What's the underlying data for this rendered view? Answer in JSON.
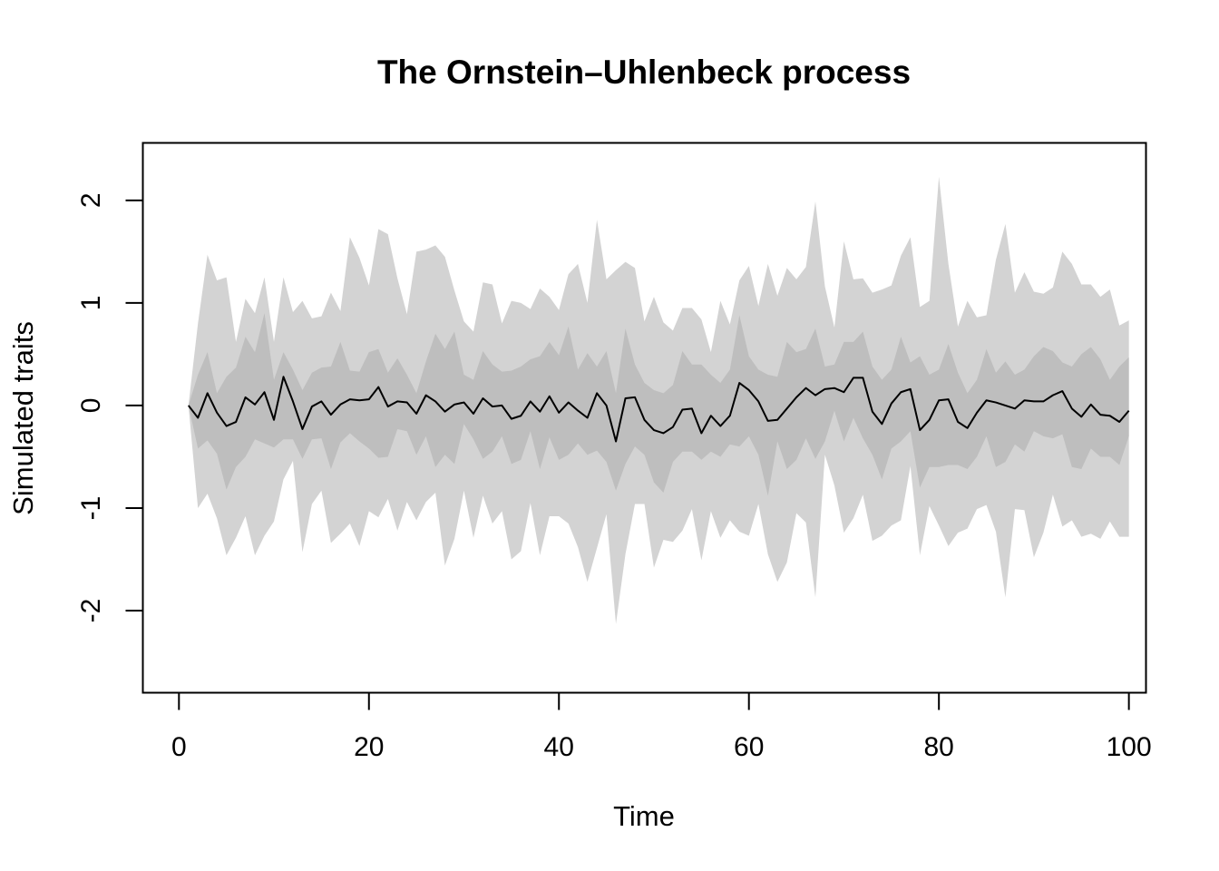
{
  "chart_data": {
    "type": "area",
    "title": "The Ornstein–Uhlenbeck process",
    "xlabel": "Time",
    "ylabel": "Simulated traits",
    "xlim": [
      -3.8,
      101.8
    ],
    "ylim": [
      -2.8,
      2.56
    ],
    "xticks": [
      0,
      20,
      40,
      60,
      80,
      100
    ],
    "yticks": [
      -2,
      -1,
      0,
      1,
      2
    ],
    "grid": false,
    "legend": "none",
    "colors": {
      "outer_band": "#d3d3d3",
      "inner_band": "#bebebe",
      "line": "#000000",
      "frame": "#000000"
    },
    "x": [
      1,
      2,
      3,
      4,
      5,
      6,
      7,
      8,
      9,
      10,
      11,
      12,
      13,
      14,
      15,
      16,
      17,
      18,
      19,
      20,
      21,
      22,
      23,
      24,
      25,
      26,
      27,
      28,
      29,
      30,
      31,
      32,
      33,
      34,
      35,
      36,
      37,
      38,
      39,
      40,
      41,
      42,
      43,
      44,
      45,
      46,
      47,
      48,
      49,
      50,
      51,
      52,
      53,
      54,
      55,
      56,
      57,
      58,
      59,
      60,
      61,
      62,
      63,
      64,
      65,
      66,
      67,
      68,
      69,
      70,
      71,
      72,
      73,
      74,
      75,
      76,
      77,
      78,
      79,
      80,
      81,
      82,
      83,
      84,
      85,
      86,
      87,
      88,
      89,
      90,
      91,
      92,
      93,
      94,
      95,
      96,
      97,
      98,
      99,
      100
    ],
    "series": [
      {
        "role": "outer band upper",
        "values": [
          0.0,
          0.8,
          1.47,
          1.22,
          1.25,
          0.62,
          1.04,
          0.9,
          1.25,
          0.62,
          1.25,
          0.91,
          1.02,
          0.85,
          0.87,
          1.1,
          0.92,
          1.64,
          1.44,
          1.17,
          1.72,
          1.67,
          1.24,
          0.89,
          1.5,
          1.52,
          1.56,
          1.45,
          1.12,
          0.82,
          0.72,
          1.2,
          1.18,
          0.8,
          1.02,
          1.0,
          0.94,
          1.14,
          1.06,
          0.93,
          1.28,
          1.38,
          1.0,
          1.81,
          1.23,
          1.32,
          1.4,
          1.34,
          0.82,
          1.06,
          0.81,
          0.73,
          0.95,
          0.95,
          0.84,
          0.52,
          1.02,
          0.79,
          1.22,
          1.36,
          0.97,
          1.38,
          1.07,
          1.34,
          1.23,
          1.35,
          1.99,
          1.16,
          0.76,
          1.6,
          1.23,
          1.24,
          1.1,
          1.13,
          1.17,
          1.46,
          1.64,
          0.96,
          1.02,
          2.23,
          1.38,
          0.77,
          1.02,
          0.86,
          0.88,
          1.42,
          1.77,
          1.1,
          1.3,
          1.11,
          1.09,
          1.15,
          1.5,
          1.38,
          1.18,
          1.18,
          1.06,
          1.13,
          0.78,
          0.83
        ]
      },
      {
        "role": "outer band lower",
        "values": [
          0.0,
          -1.0,
          -0.86,
          -1.1,
          -1.46,
          -1.29,
          -1.08,
          -1.46,
          -1.27,
          -1.13,
          -0.72,
          -0.54,
          -1.43,
          -0.96,
          -0.83,
          -1.34,
          -1.25,
          -1.15,
          -1.37,
          -1.03,
          -1.09,
          -0.91,
          -1.22,
          -0.94,
          -1.12,
          -0.94,
          -0.85,
          -1.56,
          -1.3,
          -0.83,
          -1.29,
          -0.88,
          -1.15,
          -1.03,
          -1.5,
          -1.42,
          -0.95,
          -1.46,
          -1.08,
          -1.08,
          -1.15,
          -1.38,
          -1.72,
          -1.39,
          -1.06,
          -2.13,
          -1.45,
          -0.96,
          -0.96,
          -1.58,
          -1.31,
          -1.33,
          -1.22,
          -1.01,
          -1.51,
          -1.03,
          -1.29,
          -1.12,
          -1.23,
          -1.27,
          -0.96,
          -1.45,
          -1.72,
          -1.53,
          -1.05,
          -1.14,
          -1.87,
          -0.48,
          -0.78,
          -1.24,
          -1.1,
          -0.87,
          -1.32,
          -1.27,
          -1.17,
          -1.12,
          -0.59,
          -1.46,
          -0.98,
          -1.17,
          -1.37,
          -1.24,
          -1.2,
          -1.01,
          -0.97,
          -1.23,
          -1.87,
          -1.01,
          -1.02,
          -1.48,
          -1.24,
          -0.87,
          -1.18,
          -1.12,
          -1.28,
          -1.25,
          -1.3,
          -1.13,
          -1.28,
          -1.28
        ]
      },
      {
        "role": "inner band upper",
        "values": [
          0.0,
          0.3,
          0.52,
          0.12,
          0.28,
          0.37,
          0.67,
          0.52,
          0.9,
          0.25,
          0.52,
          0.35,
          0.15,
          0.32,
          0.37,
          0.38,
          0.62,
          0.34,
          0.33,
          0.52,
          0.55,
          0.32,
          0.46,
          0.3,
          0.12,
          0.43,
          0.7,
          0.55,
          0.72,
          0.3,
          0.25,
          0.53,
          0.4,
          0.33,
          0.34,
          0.38,
          0.45,
          0.48,
          0.62,
          0.49,
          0.77,
          0.35,
          0.51,
          0.38,
          0.53,
          0.12,
          0.75,
          0.4,
          0.22,
          0.15,
          0.12,
          0.2,
          0.53,
          0.4,
          0.4,
          0.3,
          0.22,
          0.35,
          0.88,
          0.48,
          0.35,
          0.3,
          0.28,
          0.62,
          0.52,
          0.55,
          0.75,
          0.38,
          0.4,
          0.62,
          0.62,
          0.72,
          0.38,
          0.25,
          0.35,
          0.67,
          0.42,
          0.48,
          0.3,
          0.35,
          0.6,
          0.32,
          0.12,
          0.25,
          0.55,
          0.32,
          0.43,
          0.3,
          0.35,
          0.48,
          0.57,
          0.53,
          0.42,
          0.38,
          0.5,
          0.57,
          0.45,
          0.25,
          0.38,
          0.47
        ]
      },
      {
        "role": "inner band lower",
        "values": [
          0.0,
          -0.42,
          -0.34,
          -0.47,
          -0.82,
          -0.6,
          -0.5,
          -0.33,
          -0.37,
          -0.41,
          -0.33,
          -0.33,
          -0.52,
          -0.33,
          -0.32,
          -0.62,
          -0.36,
          -0.27,
          -0.35,
          -0.42,
          -0.51,
          -0.5,
          -0.23,
          -0.25,
          -0.48,
          -0.3,
          -0.6,
          -0.48,
          -0.57,
          -0.18,
          -0.33,
          -0.52,
          -0.45,
          -0.3,
          -0.57,
          -0.53,
          -0.25,
          -0.62,
          -0.31,
          -0.53,
          -0.48,
          -0.37,
          -0.48,
          -0.44,
          -0.55,
          -0.83,
          -0.57,
          -0.4,
          -0.48,
          -0.75,
          -0.85,
          -0.55,
          -0.45,
          -0.45,
          -0.53,
          -0.45,
          -0.5,
          -0.38,
          -0.4,
          -0.3,
          -0.48,
          -0.88,
          -0.35,
          -0.62,
          -0.53,
          -0.32,
          -0.52,
          -0.35,
          -0.05,
          -0.35,
          -0.12,
          -0.32,
          -0.48,
          -0.72,
          -0.42,
          -0.35,
          -0.25,
          -0.8,
          -0.6,
          -0.6,
          -0.58,
          -0.58,
          -0.62,
          -0.5,
          -0.3,
          -0.6,
          -0.55,
          -0.38,
          -0.45,
          -0.25,
          -0.3,
          -0.32,
          -0.28,
          -0.6,
          -0.62,
          -0.42,
          -0.5,
          -0.5,
          -0.58,
          -0.3
        ]
      },
      {
        "role": "mean trait",
        "values": [
          0.0,
          -0.12,
          0.12,
          -0.07,
          -0.2,
          -0.16,
          0.08,
          0.01,
          0.13,
          -0.14,
          0.28,
          0.04,
          -0.23,
          -0.01,
          0.04,
          -0.09,
          0.01,
          0.06,
          0.05,
          0.06,
          0.18,
          -0.01,
          0.04,
          0.03,
          -0.08,
          0.1,
          0.04,
          -0.06,
          0.01,
          0.03,
          -0.08,
          0.07,
          -0.01,
          0.0,
          -0.13,
          -0.1,
          0.04,
          -0.06,
          0.09,
          -0.07,
          0.03,
          -0.05,
          -0.12,
          0.12,
          0.0,
          -0.35,
          0.07,
          0.08,
          -0.14,
          -0.24,
          -0.27,
          -0.21,
          -0.04,
          -0.03,
          -0.27,
          -0.1,
          -0.2,
          -0.1,
          0.22,
          0.15,
          0.04,
          -0.15,
          -0.14,
          -0.03,
          0.08,
          0.17,
          0.1,
          0.16,
          0.17,
          0.13,
          0.27,
          0.27,
          -0.06,
          -0.18,
          0.02,
          0.13,
          0.16,
          -0.24,
          -0.14,
          0.05,
          0.06,
          -0.16,
          -0.22,
          -0.07,
          0.05,
          0.03,
          0.0,
          -0.03,
          0.05,
          0.04,
          0.04,
          0.1,
          0.14,
          -0.03,
          -0.11,
          0.01,
          -0.09,
          -0.1,
          -0.16,
          -0.05
        ]
      }
    ]
  }
}
